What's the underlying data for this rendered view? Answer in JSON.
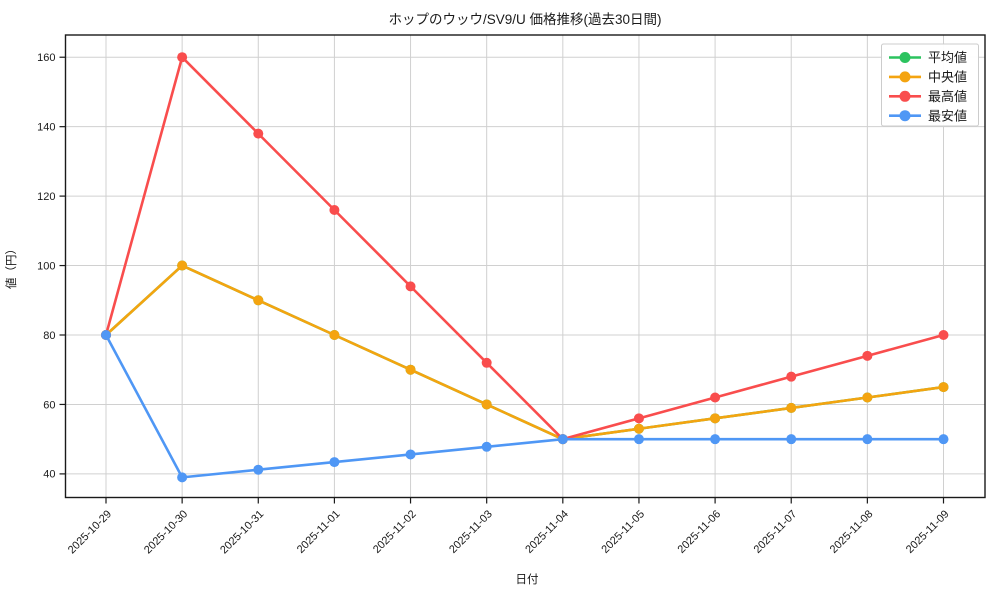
{
  "chart_data": {
    "type": "line",
    "title": "ホップのウッウ/SV9/U 価格推移(過去30日間)",
    "xlabel": "日付",
    "ylabel": "値（円）",
    "categories": [
      "2025-10-29",
      "2025-10-30",
      "2025-10-31",
      "2025-11-01",
      "2025-11-02",
      "2025-11-03",
      "2025-11-04",
      "2025-11-05",
      "2025-11-06",
      "2025-11-07",
      "2025-11-08",
      "2025-11-09"
    ],
    "series": [
      {
        "name": "平均値",
        "color": "#2cc35f",
        "values": [
          80,
          100,
          90,
          80,
          70,
          60,
          50,
          53,
          56,
          59,
          62,
          65
        ]
      },
      {
        "name": "中央値",
        "color": "#f4a410",
        "values": [
          80,
          100,
          90,
          80,
          70,
          60,
          50,
          53,
          56,
          59,
          62,
          65
        ]
      },
      {
        "name": "最高値",
        "color": "#f94d4d",
        "values": [
          80,
          160,
          138,
          116,
          94,
          72,
          50,
          56,
          62,
          68,
          74,
          80
        ]
      },
      {
        "name": "最安値",
        "color": "#4f97f5",
        "values": [
          80,
          39,
          41.2,
          43.4,
          45.6,
          47.8,
          50,
          50,
          50,
          50,
          50,
          50
        ]
      }
    ],
    "yticks": [
      40,
      60,
      80,
      100,
      120,
      140,
      160
    ],
    "ylim": [
      33.2,
      166.4
    ],
    "grid": true,
    "legend_position": "upper right",
    "x_tick_rotation_deg": 45
  }
}
